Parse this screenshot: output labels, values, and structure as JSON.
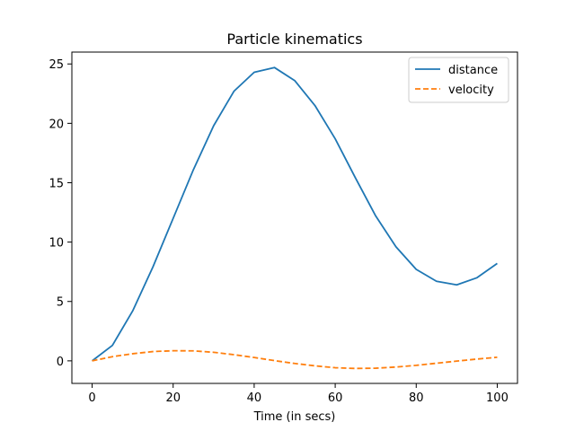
{
  "chart_data": {
    "type": "line",
    "title": "Particle kinematics",
    "xlabel": "Time (in secs)",
    "ylabel": "",
    "xlim": [
      -5,
      105
    ],
    "ylim": [
      -1.9,
      26.0
    ],
    "xticks": [
      0,
      20,
      40,
      60,
      80,
      100
    ],
    "yticks": [
      0,
      5,
      10,
      15,
      20,
      25
    ],
    "grid": false,
    "legend_position": "top-right",
    "series": [
      {
        "name": "distance",
        "color": "#1f77b4",
        "style": "solid",
        "x": [
          0,
          5,
          10,
          15,
          20,
          25,
          30,
          35,
          40,
          45,
          50,
          55,
          60,
          65,
          70,
          75,
          80,
          85,
          90,
          95,
          100
        ],
        "y": [
          0,
          1.3,
          4.2,
          7.9,
          12.0,
          16.1,
          19.8,
          22.7,
          24.3,
          24.7,
          23.6,
          21.5,
          18.7,
          15.4,
          12.2,
          9.6,
          7.7,
          6.7,
          6.4,
          7.0,
          8.2
        ]
      },
      {
        "name": "velocity",
        "color": "#ff7f0e",
        "style": "dashed",
        "x": [
          0,
          5,
          10,
          15,
          20,
          25,
          30,
          35,
          40,
          45,
          50,
          55,
          60,
          65,
          70,
          75,
          80,
          85,
          90,
          95,
          100
        ],
        "y": [
          0,
          0.35,
          0.6,
          0.78,
          0.85,
          0.84,
          0.72,
          0.52,
          0.28,
          0.02,
          -0.22,
          -0.42,
          -0.58,
          -0.64,
          -0.62,
          -0.52,
          -0.38,
          -0.2,
          -0.02,
          0.15,
          0.3
        ]
      }
    ]
  }
}
